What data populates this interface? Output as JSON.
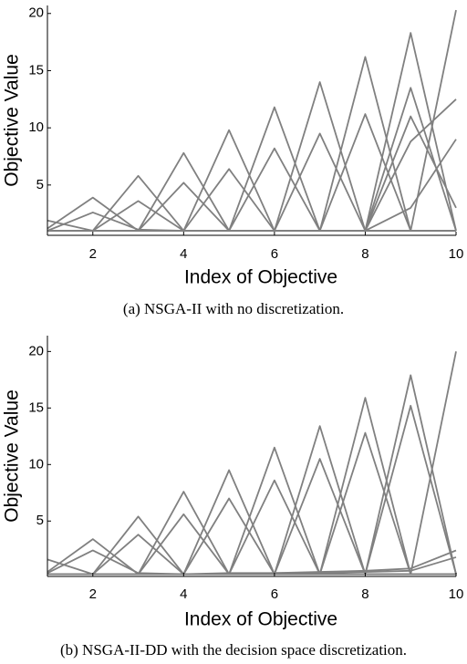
{
  "chart_data": [
    {
      "type": "line",
      "color": "#808080",
      "x": [
        1,
        2,
        3,
        4,
        5,
        6,
        7,
        8,
        9,
        10
      ],
      "xlim": [
        1,
        10
      ],
      "xticks": [
        2,
        4,
        6,
        8,
        10
      ],
      "ylim": [
        0.6,
        20.7
      ],
      "yticks": [
        5,
        10,
        15,
        20
      ],
      "xlabel": "Index of Objective",
      "ylabel": "Objective Value",
      "caption": "(a) NSGA-II with no discretization.",
      "series": [
        {
          "values": [
            1.9,
            1,
            1,
            1,
            1,
            1,
            1,
            1,
            1,
            1
          ]
        },
        {
          "values": [
            1.2,
            3.9,
            1,
            1,
            1,
            1,
            1,
            1,
            1,
            1
          ]
        },
        {
          "values": [
            1,
            2.6,
            1.1,
            1,
            1,
            1,
            1,
            1,
            1,
            1
          ]
        },
        {
          "values": [
            1,
            1,
            5.8,
            1,
            1,
            1,
            1,
            1,
            1,
            1
          ]
        },
        {
          "values": [
            1,
            1,
            3.6,
            1,
            1,
            1,
            1,
            1,
            1,
            1
          ]
        },
        {
          "values": [
            1,
            1,
            1,
            7.8,
            1,
            1,
            1,
            1,
            1,
            1
          ]
        },
        {
          "values": [
            1,
            1,
            1,
            5.2,
            1,
            1,
            1,
            1,
            1,
            1
          ]
        },
        {
          "values": [
            1,
            1,
            1,
            1,
            9.8,
            1,
            1,
            1,
            1,
            1
          ]
        },
        {
          "values": [
            1,
            1,
            1,
            1,
            6.4,
            1,
            1,
            1,
            1,
            1
          ]
        },
        {
          "values": [
            1,
            1,
            1,
            1,
            1,
            11.8,
            1,
            1,
            1,
            1
          ]
        },
        {
          "values": [
            1,
            1,
            1,
            1,
            1,
            8.2,
            1,
            1,
            1,
            1
          ]
        },
        {
          "values": [
            1,
            1,
            1,
            1,
            1,
            1,
            14,
            1,
            1,
            1
          ]
        },
        {
          "values": [
            1,
            1,
            1,
            1,
            1,
            1,
            9.5,
            1,
            1,
            1
          ]
        },
        {
          "values": [
            1,
            1,
            1,
            1,
            1,
            1,
            1,
            16.2,
            1,
            1
          ]
        },
        {
          "values": [
            1,
            1,
            1,
            1,
            1,
            1,
            1,
            11.2,
            1,
            1
          ]
        },
        {
          "values": [
            1,
            1,
            1,
            1,
            1,
            1,
            1,
            1,
            18.3,
            1
          ]
        },
        {
          "values": [
            1,
            1,
            1,
            1,
            1,
            1,
            1,
            1,
            13.5,
            1
          ]
        },
        {
          "values": [
            1,
            1,
            1,
            1,
            1,
            1,
            1,
            1,
            1,
            20.3
          ]
        },
        {
          "values": [
            1,
            1,
            1,
            1,
            1,
            1,
            1,
            1,
            8.8,
            12.5
          ]
        },
        {
          "values": [
            1,
            1,
            1,
            1,
            1,
            1,
            1,
            1,
            11,
            3
          ]
        },
        {
          "values": [
            1,
            1,
            1,
            1,
            1,
            1,
            1,
            1,
            3,
            9
          ]
        }
      ]
    },
    {
      "type": "line",
      "color": "#808080",
      "x": [
        1,
        2,
        3,
        4,
        5,
        6,
        7,
        8,
        9,
        10
      ],
      "xlim": [
        1,
        10
      ],
      "xticks": [
        2,
        4,
        6,
        8,
        10
      ],
      "ylim": [
        0.1,
        21.4
      ],
      "yticks": [
        5,
        10,
        15,
        20
      ],
      "xlabel": "Index of Objective",
      "ylabel": "Objective Value",
      "caption": "(b) NSGA-II-DD with the decision space discretization.",
      "series": [
        {
          "values": [
            1.6,
            0.3,
            0.3,
            0.3,
            0.3,
            0.3,
            0.3,
            0.3,
            0.3,
            0.3
          ]
        },
        {
          "values": [
            0.5,
            3.4,
            0.3,
            0.3,
            0.3,
            0.3,
            0.3,
            0.3,
            0.3,
            0.3
          ]
        },
        {
          "values": [
            0.4,
            2.4,
            0.4,
            0.3,
            0.3,
            0.3,
            0.3,
            0.3,
            0.3,
            0.3
          ]
        },
        {
          "values": [
            0.3,
            0.3,
            5.4,
            0.3,
            0.3,
            0.3,
            0.3,
            0.3,
            0.3,
            0.3
          ]
        },
        {
          "values": [
            0.3,
            0.3,
            3.8,
            0.3,
            0.3,
            0.3,
            0.3,
            0.3,
            0.3,
            0.3
          ]
        },
        {
          "values": [
            0.3,
            0.3,
            0.3,
            7.6,
            0.3,
            0.3,
            0.3,
            0.3,
            0.3,
            0.3
          ]
        },
        {
          "values": [
            0.3,
            0.3,
            0.3,
            5.6,
            0.3,
            0.3,
            0.3,
            0.3,
            0.3,
            0.3
          ]
        },
        {
          "values": [
            0.3,
            0.3,
            0.3,
            0.3,
            9.5,
            0.3,
            0.3,
            0.3,
            0.3,
            0.3
          ]
        },
        {
          "values": [
            0.3,
            0.3,
            0.3,
            0.3,
            7,
            0.3,
            0.3,
            0.3,
            0.3,
            0.3
          ]
        },
        {
          "values": [
            0.3,
            0.3,
            0.3,
            0.3,
            0.3,
            11.5,
            0.3,
            0.3,
            0.3,
            0.3
          ]
        },
        {
          "values": [
            0.3,
            0.3,
            0.3,
            0.3,
            0.3,
            8.6,
            0.3,
            0.3,
            0.3,
            0.3
          ]
        },
        {
          "values": [
            0.3,
            0.3,
            0.3,
            0.3,
            0.3,
            0.3,
            13.4,
            0.3,
            0.3,
            0.3
          ]
        },
        {
          "values": [
            0.3,
            0.3,
            0.3,
            0.3,
            0.3,
            0.3,
            10.5,
            0.3,
            0.3,
            0.3
          ]
        },
        {
          "values": [
            0.3,
            0.3,
            0.3,
            0.3,
            0.3,
            0.3,
            0.3,
            15.9,
            0.3,
            0.3
          ]
        },
        {
          "values": [
            0.3,
            0.3,
            0.3,
            0.3,
            0.3,
            0.3,
            0.3,
            12.8,
            0.3,
            0.3
          ]
        },
        {
          "values": [
            0.3,
            0.3,
            0.3,
            0.3,
            0.3,
            0.3,
            0.3,
            0.3,
            17.9,
            0.3
          ]
        },
        {
          "values": [
            0.3,
            0.3,
            0.3,
            0.3,
            0.3,
            0.3,
            0.3,
            0.3,
            15.2,
            0.3
          ]
        },
        {
          "values": [
            0.3,
            0.3,
            0.3,
            0.3,
            0.3,
            0.3,
            0.3,
            0.3,
            0.3,
            20
          ]
        },
        {
          "values": [
            0.3,
            0.3,
            0.3,
            0.3,
            0.4,
            0.4,
            0.5,
            0.6,
            0.8,
            2.4
          ]
        },
        {
          "values": [
            0.3,
            0.3,
            0.3,
            0.3,
            0.3,
            0.4,
            0.4,
            0.5,
            0.6,
            1.8
          ]
        }
      ]
    }
  ]
}
